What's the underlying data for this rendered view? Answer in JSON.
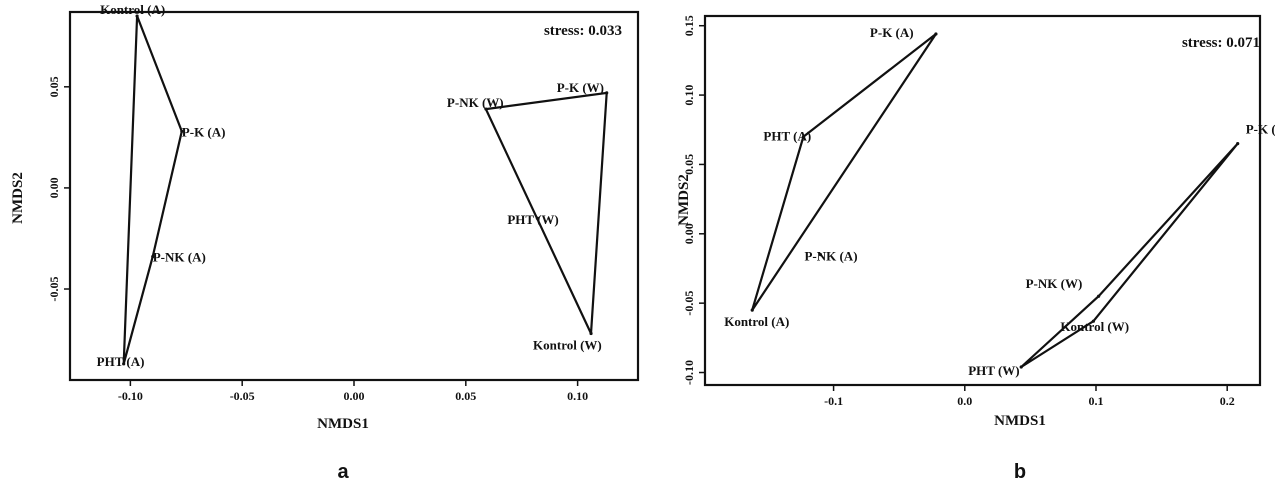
{
  "chart_data": [
    {
      "type": "scatter",
      "panel_label": "a",
      "xlabel": "NMDS1",
      "ylabel": "NMDS2",
      "annotation": "stress: 0.033",
      "xlim": [
        -0.127,
        0.127
      ],
      "ylim": [
        -0.095,
        0.087
      ],
      "xticks": [
        {
          "v": -0.1,
          "label": "-0.10"
        },
        {
          "v": -0.05,
          "label": "-0.05"
        },
        {
          "v": 0.0,
          "label": "0.00"
        },
        {
          "v": 0.05,
          "label": "0.05"
        },
        {
          "v": 0.1,
          "label": "0.10"
        }
      ],
      "yticks": [
        {
          "v": -0.05,
          "label": "-0.05"
        },
        {
          "v": 0.0,
          "label": "0.00"
        },
        {
          "v": 0.05,
          "label": "0.05"
        }
      ],
      "points": [
        {
          "label": "Kontrol (A)",
          "x": -0.097,
          "y": 0.085
        },
        {
          "label": "P-K (A)",
          "x": -0.077,
          "y": 0.028
        },
        {
          "label": "P-NK (A)",
          "x": -0.09,
          "y": -0.034
        },
        {
          "label": "PHT (A)",
          "x": -0.103,
          "y": -0.087
        },
        {
          "label": "P-K (W)",
          "x": 0.113,
          "y": 0.047
        },
        {
          "label": "P-NK (W)",
          "x": 0.059,
          "y": 0.039
        },
        {
          "label": "PHT (W)",
          "x": 0.082,
          "y": -0.015
        },
        {
          "label": "Kontrol (W)",
          "x": 0.106,
          "y": -0.072
        }
      ],
      "polygons": [
        [
          "Kontrol (A)",
          "P-K (A)",
          "P-NK (A)",
          "PHT (A)"
        ],
        [
          "P-NK (W)",
          "P-K (W)",
          "Kontrol (W)"
        ]
      ]
    },
    {
      "type": "scatter",
      "panel_label": "b",
      "xlabel": "NMDS1",
      "ylabel": "NMDS2",
      "annotation": "stress: 0.071",
      "xlim": [
        -0.198,
        0.225
      ],
      "ylim": [
        -0.109,
        0.157
      ],
      "xticks": [
        {
          "v": -0.1,
          "label": "-0.1"
        },
        {
          "v": 0.0,
          "label": "0.0"
        },
        {
          "v": 0.1,
          "label": "0.1"
        },
        {
          "v": 0.2,
          "label": "0.2"
        }
      ],
      "yticks": [
        {
          "v": -0.1,
          "label": "-0.10"
        },
        {
          "v": -0.05,
          "label": "-0.05"
        },
        {
          "v": 0.0,
          "label": "0.00"
        },
        {
          "v": 0.05,
          "label": "0.05"
        },
        {
          "v": 0.1,
          "label": "0.10"
        },
        {
          "v": 0.15,
          "label": "0.15"
        }
      ],
      "points": [
        {
          "label": "P-K (A)",
          "x": -0.022,
          "y": 0.144
        },
        {
          "label": "PHT (A)",
          "x": -0.123,
          "y": 0.07
        },
        {
          "label": "P-NK (A)",
          "x": -0.11,
          "y": -0.015
        },
        {
          "label": "Kontrol (A)",
          "x": -0.162,
          "y": -0.055
        },
        {
          "label": "P-K (W)",
          "x": 0.208,
          "y": 0.065
        },
        {
          "label": "P-NK (W)",
          "x": 0.102,
          "y": -0.045
        },
        {
          "label": "Kontrol (W)",
          "x": 0.098,
          "y": -0.063
        },
        {
          "label": "PHT (W)",
          "x": 0.043,
          "y": -0.096
        }
      ],
      "polygons": [
        [
          "P-K (A)",
          "PHT (A)",
          "Kontrol (A)"
        ],
        [
          "P-K (W)",
          "P-NK (W)",
          "PHT (W)",
          "Kontrol (W)"
        ]
      ]
    }
  ]
}
